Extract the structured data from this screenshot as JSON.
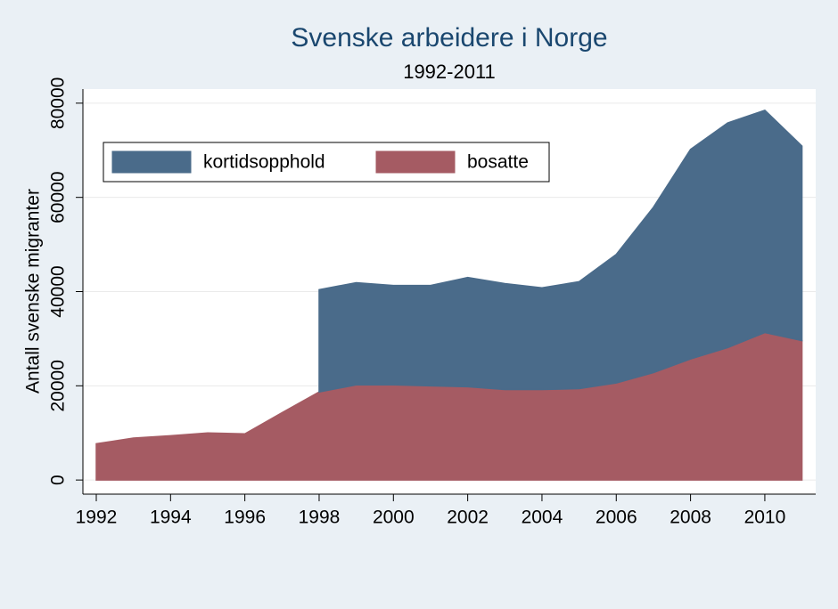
{
  "chart_data": {
    "type": "stacked-area",
    "title": "Svenske arbeidere i Norge",
    "subtitle": "1992-2011",
    "y_label": "Antall svenske migranter",
    "x": [
      1992,
      1993,
      1994,
      1995,
      1996,
      1997,
      1998,
      1999,
      2000,
      2001,
      2002,
      2003,
      2004,
      2005,
      2006,
      2007,
      2008,
      2009,
      2010,
      2011
    ],
    "series": [
      {
        "name": "kortidsopphold",
        "color": "#4a6b8a",
        "values": [
          null,
          null,
          null,
          null,
          null,
          null,
          21700,
          21700,
          21100,
          21300,
          23200,
          22500,
          21600,
          22700,
          27300,
          35100,
          44500,
          47700,
          47200,
          41300
        ]
      },
      {
        "name": "bosatte",
        "color": "#a55b63",
        "values": [
          7700,
          8900,
          9400,
          10000,
          9800,
          14300,
          18700,
          20200,
          20200,
          20000,
          19800,
          19200,
          19200,
          19400,
          20600,
          22800,
          25700,
          28100,
          31300,
          29600
        ]
      }
    ],
    "xlim": [
      1991.64,
      2011.37
    ],
    "xticks": [
      1992,
      1994,
      1996,
      1998,
      2000,
      2002,
      2004,
      2006,
      2008,
      2010
    ],
    "ylim": [
      -3000,
      83000
    ],
    "yticks": [
      0,
      20000,
      40000,
      60000,
      80000
    ],
    "grid": true,
    "legend": "top-left"
  }
}
